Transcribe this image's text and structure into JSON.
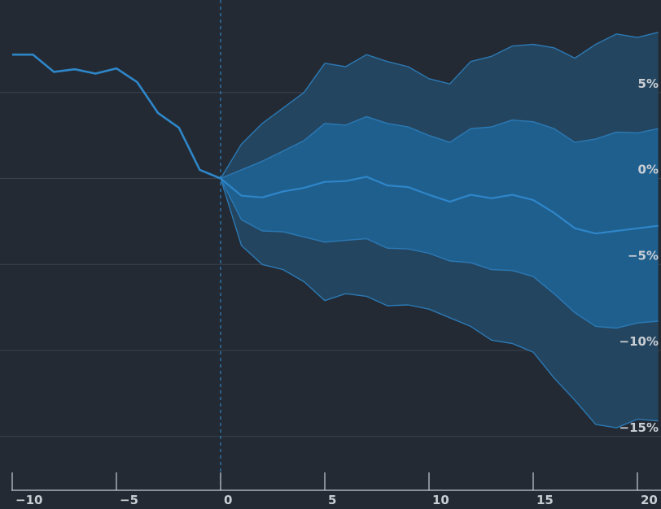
{
  "chart_data": {
    "type": "line",
    "title": "",
    "xlabel": "",
    "ylabel": "",
    "xlim": [
      -10,
      21
    ],
    "ylim": [
      -17,
      10
    ],
    "grid": true,
    "x_ticks": [
      -10,
      -5,
      0,
      5,
      10,
      15,
      20
    ],
    "x_tick_labels": [
      "−10",
      "−5",
      "0",
      "5",
      "10",
      "15",
      "20"
    ],
    "y_ticks": [
      5,
      0,
      -5,
      -10,
      -15
    ],
    "y_tick_labels": [
      "5%",
      "0%",
      "−5%",
      "−10%",
      "−15%"
    ],
    "event_marker_x": 0,
    "colors": {
      "background": "#232a33",
      "grid": "#3a434e",
      "axis": "#c9ced4",
      "history_line": "#2e86c9",
      "outer_band_fill": "#24455f",
      "inner_band_fill": "#1f5f8e",
      "band_edge": "#2b79b5",
      "median_line": "#2e86c9"
    },
    "history": {
      "x": [
        -10,
        -9,
        -8,
        -7,
        -6,
        -5,
        -4,
        -3,
        -2,
        -1,
        0
      ],
      "values": [
        7.2,
        7.2,
        6.2,
        6.35,
        6.1,
        6.4,
        5.6,
        3.8,
        2.95,
        0.5,
        0
      ]
    },
    "forecast": {
      "x": [
        0,
        1,
        2,
        3,
        4,
        5,
        6,
        7,
        8,
        9,
        10,
        11,
        12,
        13,
        14,
        15,
        16,
        17,
        18,
        19,
        20,
        21
      ],
      "outer_upper": [
        0,
        2.0,
        3.2,
        4.1,
        5.0,
        6.7,
        6.5,
        7.2,
        6.8,
        6.5,
        5.8,
        5.5,
        6.8,
        7.1,
        7.7,
        7.8,
        7.6,
        7.0,
        7.8,
        8.4,
        8.2,
        8.5
      ],
      "inner_upper": [
        0,
        0.5,
        1.0,
        1.6,
        2.2,
        3.2,
        3.1,
        3.6,
        3.2,
        3.0,
        2.5,
        2.1,
        2.9,
        3.0,
        3.4,
        3.3,
        2.9,
        2.1,
        2.3,
        2.7,
        2.65,
        2.9
      ],
      "median": [
        0,
        -1.0,
        -1.1,
        -0.75,
        -0.55,
        -0.2,
        -0.15,
        0.1,
        -0.4,
        -0.5,
        -0.95,
        -1.35,
        -0.95,
        -1.15,
        -0.95,
        -1.25,
        -2.0,
        -2.9,
        -3.2,
        -3.05,
        -2.9,
        -2.75
      ],
      "inner_lower": [
        0,
        -2.4,
        -3.05,
        -3.1,
        -3.4,
        -3.7,
        -3.6,
        -3.5,
        -4.05,
        -4.1,
        -4.35,
        -4.8,
        -4.9,
        -5.3,
        -5.35,
        -5.7,
        -6.7,
        -7.8,
        -8.6,
        -8.7,
        -8.4,
        -8.3
      ],
      "outer_lower": [
        0,
        -3.9,
        -5.0,
        -5.3,
        -6.0,
        -7.1,
        -6.7,
        -6.85,
        -7.4,
        -7.35,
        -7.6,
        -8.1,
        -8.6,
        -9.4,
        -9.6,
        -10.1,
        -11.6,
        -12.9,
        -14.3,
        -14.5,
        -14.0,
        -14.1
      ]
    }
  }
}
